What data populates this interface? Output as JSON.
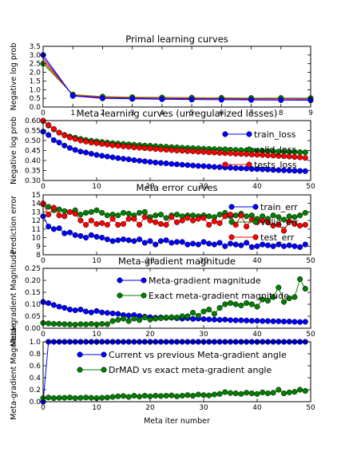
{
  "chart_data": [
    {
      "type": "line",
      "title": "Primal learning curves",
      "ylabel": "Negative log prob",
      "xlabel": "",
      "xlim": [
        0,
        9
      ],
      "ylim": [
        0,
        3.5
      ],
      "xticks": [
        0,
        1,
        2,
        3,
        4,
        5,
        6,
        7,
        8,
        9
      ],
      "yticks": [
        0.0,
        0.5,
        1.0,
        1.5,
        2.0,
        2.5,
        3.0,
        3.5
      ],
      "ytick_labels": [
        "0.0",
        "0.5",
        "1.0",
        "1.5",
        "2.0",
        "2.5",
        "3.0",
        "3.5"
      ],
      "legend": [],
      "x": [
        0,
        1,
        2,
        3,
        4,
        5,
        6,
        7,
        8,
        9
      ],
      "series": [
        {
          "color": "#008000",
          "marker": true,
          "values": [
            2.5,
            0.72,
            0.6,
            0.57,
            0.55,
            0.54,
            0.53,
            0.52,
            0.52,
            0.51
          ]
        },
        {
          "color": "#bfbf00",
          "marker": false,
          "values": [
            2.6,
            0.7,
            0.58,
            0.55,
            0.53,
            0.52,
            0.51,
            0.5,
            0.5,
            0.49
          ]
        },
        {
          "color": "#ff0000",
          "marker": false,
          "values": [
            2.7,
            0.68,
            0.56,
            0.53,
            0.51,
            0.5,
            0.49,
            0.48,
            0.48,
            0.47
          ]
        },
        {
          "color": "#800080",
          "marker": false,
          "values": [
            2.85,
            0.66,
            0.54,
            0.51,
            0.49,
            0.48,
            0.47,
            0.46,
            0.46,
            0.45
          ]
        },
        {
          "color": "#0000ff",
          "marker": true,
          "values": [
            3.0,
            0.64,
            0.5,
            0.47,
            0.45,
            0.43,
            0.42,
            0.41,
            0.4,
            0.39
          ]
        }
      ]
    },
    {
      "type": "line",
      "title": "Meta learning curves (unregularized losses)",
      "ylabel": "Negative log prob",
      "xlabel": "",
      "xlim": [
        0,
        50
      ],
      "ylim": [
        0.3,
        0.6
      ],
      "xticks": [
        0,
        10,
        20,
        30,
        40,
        50
      ],
      "yticks": [
        0.3,
        0.35,
        0.4,
        0.45,
        0.5,
        0.55,
        0.6
      ],
      "ytick_labels": [
        "0.30",
        "0.35",
        "0.40",
        "0.45",
        "0.50",
        "0.55",
        "0.60"
      ],
      "legend": [
        "train_loss",
        "valid_loss",
        "tests_loss"
      ],
      "series": [
        {
          "name": "train_loss",
          "color": "#0000ff",
          "values": [
            0.545,
            0.528,
            0.502,
            0.49,
            0.475,
            0.463,
            0.453,
            0.445,
            0.44,
            0.434,
            0.428,
            0.424,
            0.42,
            0.416,
            0.412,
            0.409,
            0.406,
            0.402,
            0.399,
            0.396,
            0.393,
            0.39,
            0.388,
            0.386,
            0.383,
            0.381,
            0.379,
            0.377,
            0.375,
            0.373,
            0.372,
            0.37,
            0.368,
            0.367,
            0.365,
            0.364,
            0.362,
            0.361,
            0.36,
            0.358,
            0.357,
            0.356,
            0.355,
            0.353,
            0.352,
            0.351,
            0.35,
            0.349,
            0.348,
            0.347
          ]
        },
        {
          "name": "valid_loss",
          "color": "#008000",
          "values": [
            0.598,
            0.575,
            0.556,
            0.54,
            0.528,
            0.52,
            0.514,
            0.508,
            0.503,
            0.499,
            0.496,
            0.493,
            0.49,
            0.487,
            0.485,
            0.483,
            0.481,
            0.479,
            0.477,
            0.475,
            0.474,
            0.472,
            0.47,
            0.469,
            0.467,
            0.466,
            0.464,
            0.463,
            0.462,
            0.461,
            0.459,
            0.458,
            0.457,
            0.456,
            0.455,
            0.454,
            0.453,
            0.452,
            0.451,
            0.45,
            0.449,
            0.448,
            0.447,
            0.446,
            0.445,
            0.444,
            0.443,
            0.443,
            0.442,
            0.441
          ]
        },
        {
          "name": "tests_loss",
          "color": "#ff0000",
          "values": [
            0.6,
            0.578,
            0.558,
            0.54,
            0.526,
            0.515,
            0.508,
            0.5,
            0.495,
            0.49,
            0.487,
            0.483,
            0.48,
            0.476,
            0.474,
            0.471,
            0.469,
            0.466,
            0.464,
            0.462,
            0.46,
            0.458,
            0.456,
            0.454,
            0.452,
            0.45,
            0.449,
            0.447,
            0.446,
            0.444,
            0.443,
            0.441,
            0.44,
            0.438,
            0.437,
            0.436,
            0.434,
            0.433,
            0.432,
            0.43,
            0.429,
            0.428,
            0.426,
            0.425,
            0.423,
            0.422,
            0.42,
            0.418,
            0.416,
            0.413
          ]
        }
      ]
    },
    {
      "type": "line",
      "title": "Meta error curves",
      "ylabel": "Prediction error",
      "xlabel": "",
      "xlim": [
        0,
        50
      ],
      "ylim": [
        8,
        15
      ],
      "xticks": [
        0,
        10,
        20,
        30,
        40,
        50
      ],
      "yticks": [
        8,
        9,
        10,
        11,
        12,
        13,
        14,
        15
      ],
      "ytick_labels": [
        "8",
        "9",
        "10",
        "11",
        "12",
        "13",
        "14",
        "15"
      ],
      "legend": [
        "train_err",
        "valid_err",
        "test_err"
      ],
      "series": [
        {
          "name": "train_err",
          "color": "#0000ff",
          "values": [
            12.5,
            11.3,
            11.0,
            11.1,
            10.5,
            10.6,
            10.3,
            10.2,
            10.0,
            10.3,
            10.1,
            10.0,
            9.8,
            9.6,
            9.7,
            9.8,
            9.7,
            9.6,
            9.8,
            9.4,
            9.6,
            9.2,
            9.6,
            9.7,
            9.4,
            9.5,
            9.5,
            9.2,
            9.3,
            9.2,
            9.5,
            9.3,
            9.2,
            9.4,
            9.0,
            9.3,
            9.2,
            9.1,
            9.4,
            8.9,
            9.0,
            9.2,
            9.1,
            9.0,
            9.2,
            9.0,
            9.1,
            9.0,
            8.9,
            9.2
          ]
        },
        {
          "name": "valid_err",
          "color": "#008000",
          "values": [
            13.9,
            13.6,
            13.2,
            13.3,
            13.1,
            13.0,
            13.2,
            12.7,
            12.9,
            13.0,
            13.2,
            12.9,
            12.6,
            12.7,
            12.6,
            12.9,
            12.8,
            12.6,
            12.9,
            13.0,
            12.4,
            12.6,
            12.7,
            12.3,
            12.6,
            12.7,
            12.5,
            12.6,
            12.6,
            12.5,
            12.6,
            12.5,
            12.4,
            12.7,
            12.9,
            12.5,
            12.6,
            12.8,
            12.5,
            12.6,
            12.2,
            12.5,
            12.2,
            12.6,
            12.4,
            12.1,
            12.5,
            12.4,
            12.6,
            12.9
          ]
        },
        {
          "name": "test_err",
          "color": "#ff0000",
          "values": [
            14.0,
            12.7,
            13.5,
            12.6,
            12.5,
            13.0,
            12.8,
            12.0,
            11.5,
            12.0,
            11.6,
            11.7,
            11.5,
            12.2,
            11.5,
            11.6,
            12.2,
            12.2,
            11.5,
            12.4,
            12.0,
            11.8,
            11.6,
            11.5,
            12.4,
            11.8,
            12.0,
            12.3,
            12.0,
            12.2,
            12.3,
            11.5,
            11.9,
            11.7,
            12.5,
            12.7,
            11.5,
            12.6,
            11.3,
            12.1,
            11.8,
            12.0,
            11.8,
            11.4,
            11.5,
            10.8,
            11.9,
            11.6,
            11.4,
            11.5
          ]
        }
      ]
    },
    {
      "type": "line",
      "title": "Meta-gradient magnitude",
      "ylabel": "Meta-gradient Magnitude",
      "xlabel": "",
      "xlim": [
        0,
        50
      ],
      "ylim": [
        0,
        0.25
      ],
      "xticks": [
        0,
        10,
        20,
        30,
        40,
        50
      ],
      "yticks": [
        0.0,
        0.05,
        0.1,
        0.15,
        0.2,
        0.25
      ],
      "ytick_labels": [
        "0.00",
        "0.05",
        "0.10",
        "0.15",
        "0.20",
        "0.25"
      ],
      "legend": [
        "Meta-gradient magnitude",
        "Exact meta-gradient magnitude"
      ],
      "series": [
        {
          "name": "Meta-gradient magnitude",
          "color": "#0000ff",
          "values": [
            0.11,
            0.105,
            0.097,
            0.09,
            0.085,
            0.078,
            0.075,
            0.078,
            0.07,
            0.066,
            0.072,
            0.066,
            0.064,
            0.062,
            0.06,
            0.055,
            0.053,
            0.055,
            0.051,
            0.048,
            0.046,
            0.044,
            0.045,
            0.043,
            0.044,
            0.042,
            0.04,
            0.042,
            0.039,
            0.04,
            0.038,
            0.037,
            0.036,
            0.035,
            0.036,
            0.034,
            0.033,
            0.033,
            0.032,
            0.031,
            0.031,
            0.03,
            0.03,
            0.029,
            0.029,
            0.028,
            0.028,
            0.027,
            0.026,
            0.027
          ]
        },
        {
          "name": "Exact meta-gradient magnitude",
          "color": "#008000",
          "values": [
            0.022,
            0.02,
            0.018,
            0.018,
            0.017,
            0.016,
            0.015,
            0.017,
            0.016,
            0.018,
            0.016,
            0.018,
            0.017,
            0.03,
            0.035,
            0.04,
            0.03,
            0.04,
            0.034,
            0.045,
            0.036,
            0.04,
            0.042,
            0.045,
            0.046,
            0.045,
            0.05,
            0.05,
            0.065,
            0.052,
            0.07,
            0.078,
            0.06,
            0.085,
            0.1,
            0.105,
            0.1,
            0.095,
            0.105,
            0.1,
            0.09,
            0.12,
            0.115,
            0.13,
            0.17,
            0.11,
            0.125,
            0.13,
            0.205,
            0.165
          ]
        }
      ]
    },
    {
      "type": "line",
      "title": "",
      "ylabel": "Meta-gradient Magnitude",
      "xlabel": "Meta iter number",
      "xlim": [
        0,
        50
      ],
      "ylim": [
        0,
        1.0
      ],
      "xticks": [
        0,
        10,
        20,
        30,
        40,
        50
      ],
      "yticks": [
        0.0,
        0.2,
        0.4,
        0.6,
        0.8,
        1.0
      ],
      "ytick_labels": [
        "0.0",
        "0.2",
        "0.4",
        "0.6",
        "0.8",
        "1.0"
      ],
      "legend": [
        "Current vs previous Meta-gradient angle",
        "DrMAD vs exact meta-gradient angle"
      ],
      "series": [
        {
          "name": "Current vs previous Meta-gradient angle",
          "color": "#0000ff",
          "values": [
            0.0,
            1.0,
            1.0,
            1.0,
            1.0,
            1.0,
            1.0,
            1.0,
            1.0,
            1.0,
            1.0,
            1.0,
            1.0,
            1.0,
            1.0,
            1.0,
            1.0,
            1.0,
            1.0,
            1.0,
            1.0,
            1.0,
            1.0,
            1.0,
            1.0,
            1.0,
            1.0,
            1.0,
            1.0,
            1.0,
            1.0,
            1.0,
            1.0,
            1.0,
            1.0,
            1.0,
            1.0,
            1.0,
            1.0,
            1.0,
            1.0,
            1.0,
            1.0,
            1.0,
            1.0,
            1.0,
            1.0,
            1.0,
            1.0,
            1.0
          ]
        },
        {
          "name": "DrMAD vs exact meta-gradient angle",
          "color": "#008000",
          "values": [
            0.06,
            0.07,
            0.06,
            0.065,
            0.065,
            0.07,
            0.06,
            0.065,
            0.07,
            0.065,
            0.06,
            0.065,
            0.07,
            0.08,
            0.09,
            0.095,
            0.08,
            0.1,
            0.085,
            0.1,
            0.09,
            0.1,
            0.095,
            0.1,
            0.105,
            0.09,
            0.1,
            0.11,
            0.1,
            0.12,
            0.11,
            0.105,
            0.12,
            0.13,
            0.16,
            0.145,
            0.14,
            0.13,
            0.15,
            0.14,
            0.13,
            0.155,
            0.14,
            0.15,
            0.2,
            0.14,
            0.155,
            0.165,
            0.2,
            0.18
          ]
        }
      ]
    }
  ]
}
